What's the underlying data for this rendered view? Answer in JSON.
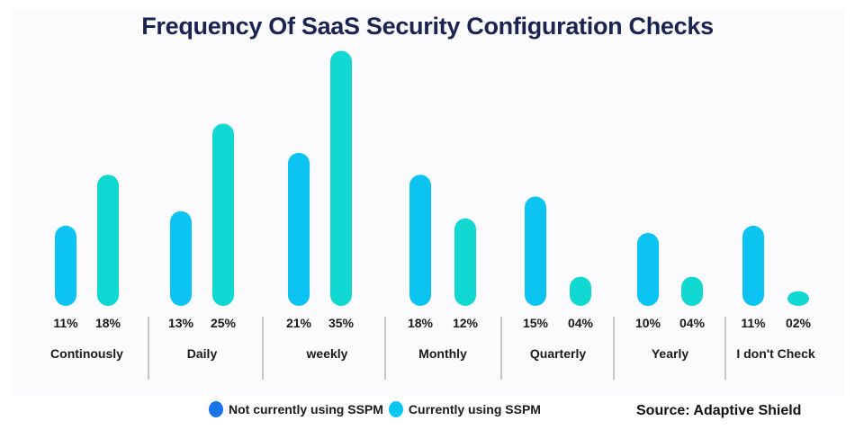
{
  "chart_data": {
    "type": "bar",
    "title": "Frequency Of SaaS Security Configuration Checks",
    "categories": [
      "Continously",
      "Daily",
      "weekly",
      "Monthly",
      "Quarterly",
      "Yearly",
      "I don't Check"
    ],
    "series": [
      {
        "name": "Not currently using SSPM",
        "values": [
          11,
          13,
          21,
          18,
          15,
          10,
          11
        ],
        "labels": [
          "11%",
          "13%",
          "21%",
          "18%",
          "15%",
          "10%",
          "11%"
        ],
        "color": "#0cc4f2",
        "legend_color": "#1a73e8"
      },
      {
        "name": "Currently using SSPM",
        "values": [
          18,
          25,
          35,
          12,
          4,
          4,
          2
        ],
        "labels": [
          "18%",
          "25%",
          "35%",
          "12%",
          "04%",
          "04%",
          "02%"
        ],
        "color": "#12d8d2",
        "legend_color": "#0cc8f0"
      }
    ],
    "ylim": [
      0,
      35
    ],
    "grid": false,
    "legend_placement": "bottom",
    "source": "Source: Adaptive Shield"
  }
}
